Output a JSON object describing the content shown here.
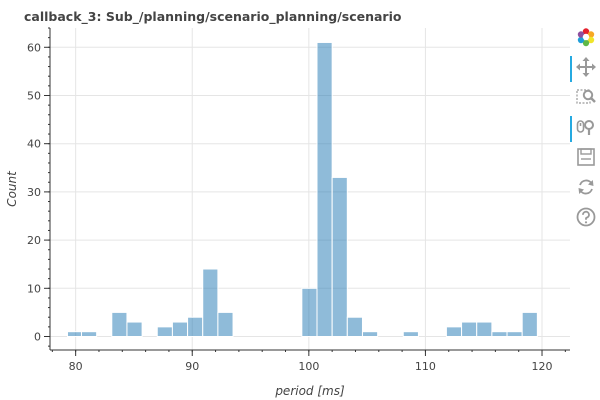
{
  "chart_data": {
    "type": "bar",
    "title": "callback_3: Sub_/planning/scenario_planning/scenario",
    "xlabel": "period [ms]",
    "ylabel": "Count",
    "xlim": [
      77.8,
      122.4
    ],
    "ylim": [
      -2.8,
      64
    ],
    "xticks": [
      80,
      90,
      100,
      110,
      120
    ],
    "yticks": [
      0,
      10,
      20,
      30,
      40,
      50,
      60
    ],
    "grid": true,
    "bar_color": "#1f77b4",
    "bins": [
      {
        "x0": 79.3,
        "x1": 80.5,
        "count": 1
      },
      {
        "x0": 80.5,
        "x1": 81.8,
        "count": 1
      },
      {
        "x0": 83.1,
        "x1": 84.4,
        "count": 5
      },
      {
        "x0": 84.4,
        "x1": 85.7,
        "count": 3
      },
      {
        "x0": 87.0,
        "x1": 88.3,
        "count": 2
      },
      {
        "x0": 88.3,
        "x1": 89.6,
        "count": 3
      },
      {
        "x0": 89.6,
        "x1": 90.9,
        "count": 4
      },
      {
        "x0": 90.9,
        "x1": 92.2,
        "count": 14
      },
      {
        "x0": 92.2,
        "x1": 93.5,
        "count": 5
      },
      {
        "x0": 99.4,
        "x1": 100.7,
        "count": 10
      },
      {
        "x0": 100.7,
        "x1": 102.0,
        "count": 61
      },
      {
        "x0": 102.0,
        "x1": 103.3,
        "count": 33
      },
      {
        "x0": 103.3,
        "x1": 104.6,
        "count": 4
      },
      {
        "x0": 104.6,
        "x1": 105.9,
        "count": 1
      },
      {
        "x0": 108.1,
        "x1": 109.4,
        "count": 1
      },
      {
        "x0": 111.8,
        "x1": 113.1,
        "count": 2
      },
      {
        "x0": 113.1,
        "x1": 114.4,
        "count": 3
      },
      {
        "x0": 114.4,
        "x1": 115.7,
        "count": 3
      },
      {
        "x0": 115.7,
        "x1": 117.0,
        "count": 1
      },
      {
        "x0": 117.0,
        "x1": 118.3,
        "count": 1
      },
      {
        "x0": 118.3,
        "x1": 119.6,
        "count": 5
      }
    ]
  },
  "toolbar": {
    "tools": [
      {
        "name": "bokeh-logo-icon",
        "active": false
      },
      {
        "name": "pan-icon",
        "active": true
      },
      {
        "name": "box-zoom-icon",
        "active": false
      },
      {
        "name": "wheel-zoom-icon",
        "active": true
      },
      {
        "name": "save-icon",
        "active": false
      },
      {
        "name": "reset-icon",
        "active": false
      },
      {
        "name": "help-icon",
        "active": false
      }
    ]
  }
}
